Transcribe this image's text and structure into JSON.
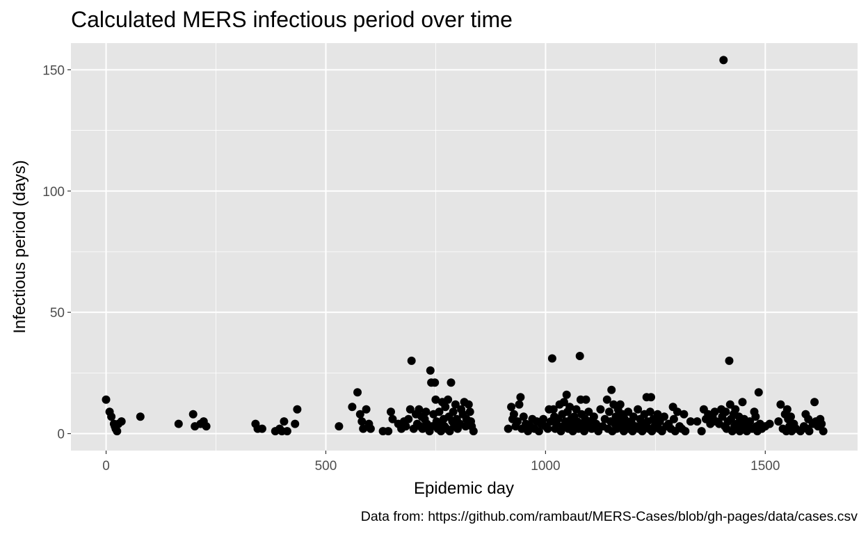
{
  "chart_data": {
    "type": "scatter",
    "title": "Calculated MERS infectious period over time",
    "xlabel": "Epidemic day",
    "ylabel": "Infectious period (days)",
    "caption": "Data from: https://github.com/rambaut/MERS-Cases/blob/gh-pages/data/cases.csv",
    "xlim": [
      -80,
      1710
    ],
    "ylim": [
      -7,
      161
    ],
    "x_ticks": [
      0,
      500,
      1000,
      1500
    ],
    "y_ticks": [
      0,
      50,
      100,
      150
    ],
    "x_tick_labels": [
      "0",
      "500",
      "1000",
      "1500"
    ],
    "y_tick_labels": [
      "0",
      "50",
      "100",
      "150"
    ],
    "grid": true,
    "colors": {
      "panel": "#e5e5e5",
      "grid": "#ffffff",
      "point": "#000000",
      "tick_label": "#4d4d4d"
    },
    "points": [
      [
        0,
        14
      ],
      [
        8,
        9
      ],
      [
        12,
        7
      ],
      [
        18,
        4
      ],
      [
        20,
        3
      ],
      [
        22,
        2
      ],
      [
        25,
        1
      ],
      [
        28,
        4
      ],
      [
        35,
        5
      ],
      [
        78,
        7
      ],
      [
        165,
        4
      ],
      [
        198,
        8
      ],
      [
        202,
        3
      ],
      [
        215,
        4
      ],
      [
        222,
        5
      ],
      [
        228,
        3
      ],
      [
        340,
        4
      ],
      [
        345,
        2
      ],
      [
        355,
        2
      ],
      [
        385,
        1
      ],
      [
        395,
        2
      ],
      [
        400,
        1
      ],
      [
        405,
        5
      ],
      [
        412,
        1
      ],
      [
        430,
        4
      ],
      [
        435,
        10
      ],
      [
        530,
        3
      ],
      [
        560,
        11
      ],
      [
        572,
        17
      ],
      [
        578,
        8
      ],
      [
        582,
        5
      ],
      [
        585,
        2
      ],
      [
        592,
        10
      ],
      [
        598,
        4
      ],
      [
        602,
        2
      ],
      [
        630,
        1
      ],
      [
        642,
        1
      ],
      [
        648,
        9
      ],
      [
        652,
        6
      ],
      [
        665,
        4
      ],
      [
        672,
        2
      ],
      [
        678,
        5
      ],
      [
        682,
        3
      ],
      [
        688,
        6
      ],
      [
        692,
        10
      ],
      [
        695,
        30
      ],
      [
        700,
        2
      ],
      [
        705,
        8
      ],
      [
        708,
        4
      ],
      [
        712,
        10
      ],
      [
        715,
        3
      ],
      [
        718,
        7
      ],
      [
        720,
        2
      ],
      [
        725,
        6
      ],
      [
        728,
        9
      ],
      [
        730,
        4
      ],
      [
        733,
        2
      ],
      [
        736,
        1
      ],
      [
        738,
        26
      ],
      [
        740,
        21
      ],
      [
        742,
        3
      ],
      [
        745,
        8
      ],
      [
        748,
        21
      ],
      [
        750,
        14
      ],
      [
        752,
        5
      ],
      [
        755,
        2
      ],
      [
        758,
        9
      ],
      [
        760,
        4
      ],
      [
        762,
        1
      ],
      [
        765,
        13
      ],
      [
        768,
        6
      ],
      [
        770,
        3
      ],
      [
        772,
        11
      ],
      [
        775,
        2
      ],
      [
        778,
        14
      ],
      [
        780,
        7
      ],
      [
        782,
        1
      ],
      [
        785,
        21
      ],
      [
        788,
        5
      ],
      [
        790,
        9
      ],
      [
        792,
        3
      ],
      [
        795,
        12
      ],
      [
        798,
        6
      ],
      [
        800,
        2
      ],
      [
        805,
        4
      ],
      [
        808,
        10
      ],
      [
        812,
        8
      ],
      [
        815,
        13
      ],
      [
        818,
        3
      ],
      [
        820,
        6
      ],
      [
        825,
        12
      ],
      [
        828,
        9
      ],
      [
        830,
        5
      ],
      [
        832,
        3
      ],
      [
        836,
        1
      ],
      [
        915,
        2
      ],
      [
        922,
        11
      ],
      [
        925,
        6
      ],
      [
        928,
        8
      ],
      [
        932,
        3
      ],
      [
        936,
        5
      ],
      [
        940,
        12
      ],
      [
        943,
        15
      ],
      [
        946,
        2
      ],
      [
        950,
        7
      ],
      [
        955,
        4
      ],
      [
        960,
        1
      ],
      [
        965,
        3
      ],
      [
        970,
        6
      ],
      [
        975,
        2
      ],
      [
        980,
        5
      ],
      [
        985,
        1
      ],
      [
        990,
        4
      ],
      [
        995,
        6
      ],
      [
        1000,
        3
      ],
      [
        1005,
        2
      ],
      [
        1008,
        10
      ],
      [
        1012,
        5
      ],
      [
        1015,
        31
      ],
      [
        1018,
        10
      ],
      [
        1020,
        7
      ],
      [
        1022,
        2
      ],
      [
        1025,
        4
      ],
      [
        1028,
        6
      ],
      [
        1032,
        12
      ],
      [
        1035,
        1
      ],
      [
        1038,
        8
      ],
      [
        1040,
        3
      ],
      [
        1042,
        13
      ],
      [
        1045,
        5
      ],
      [
        1048,
        16
      ],
      [
        1050,
        9
      ],
      [
        1052,
        2
      ],
      [
        1055,
        11
      ],
      [
        1058,
        6
      ],
      [
        1060,
        4
      ],
      [
        1062,
        1
      ],
      [
        1065,
        7
      ],
      [
        1068,
        3
      ],
      [
        1070,
        10
      ],
      [
        1072,
        5
      ],
      [
        1075,
        2
      ],
      [
        1078,
        32
      ],
      [
        1080,
        14
      ],
      [
        1082,
        8
      ],
      [
        1085,
        4
      ],
      [
        1088,
        1
      ],
      [
        1090,
        6
      ],
      [
        1092,
        14
      ],
      [
        1095,
        3
      ],
      [
        1098,
        9
      ],
      [
        1100,
        5
      ],
      [
        1105,
        2
      ],
      [
        1110,
        7
      ],
      [
        1115,
        4
      ],
      [
        1120,
        1
      ],
      [
        1125,
        10
      ],
      [
        1130,
        3
      ],
      [
        1135,
        6
      ],
      [
        1140,
        14
      ],
      [
        1142,
        2
      ],
      [
        1145,
        9
      ],
      [
        1148,
        5
      ],
      [
        1150,
        18
      ],
      [
        1152,
        1
      ],
      [
        1155,
        12
      ],
      [
        1158,
        4
      ],
      [
        1160,
        7
      ],
      [
        1162,
        2
      ],
      [
        1165,
        10
      ],
      [
        1168,
        5
      ],
      [
        1170,
        12
      ],
      [
        1172,
        3
      ],
      [
        1175,
        8
      ],
      [
        1178,
        1
      ],
      [
        1180,
        6
      ],
      [
        1185,
        4
      ],
      [
        1188,
        9
      ],
      [
        1190,
        2
      ],
      [
        1195,
        5
      ],
      [
        1198,
        1
      ],
      [
        1200,
        7
      ],
      [
        1205,
        3
      ],
      [
        1210,
        10
      ],
      [
        1212,
        2
      ],
      [
        1215,
        6
      ],
      [
        1218,
        4
      ],
      [
        1220,
        1
      ],
      [
        1225,
        8
      ],
      [
        1228,
        3
      ],
      [
        1230,
        15
      ],
      [
        1232,
        5
      ],
      [
        1235,
        2
      ],
      [
        1238,
        9
      ],
      [
        1240,
        15
      ],
      [
        1242,
        1
      ],
      [
        1245,
        6
      ],
      [
        1248,
        3
      ],
      [
        1250,
        4
      ],
      [
        1255,
        8
      ],
      [
        1258,
        2
      ],
      [
        1260,
        5
      ],
      [
        1265,
        1
      ],
      [
        1270,
        7
      ],
      [
        1275,
        3
      ],
      [
        1280,
        4
      ],
      [
        1285,
        2
      ],
      [
        1290,
        11
      ],
      [
        1292,
        6
      ],
      [
        1295,
        1
      ],
      [
        1300,
        9
      ],
      [
        1305,
        3
      ],
      [
        1310,
        2
      ],
      [
        1315,
        8
      ],
      [
        1318,
        1
      ],
      [
        1330,
        5
      ],
      [
        1345,
        5
      ],
      [
        1355,
        1
      ],
      [
        1360,
        10
      ],
      [
        1365,
        6
      ],
      [
        1370,
        8
      ],
      [
        1375,
        4
      ],
      [
        1380,
        7
      ],
      [
        1385,
        9
      ],
      [
        1388,
        5
      ],
      [
        1395,
        4
      ],
      [
        1400,
        10
      ],
      [
        1402,
        7
      ],
      [
        1405,
        154
      ],
      [
        1408,
        3
      ],
      [
        1410,
        9
      ],
      [
        1412,
        2
      ],
      [
        1415,
        5
      ],
      [
        1418,
        30
      ],
      [
        1420,
        12
      ],
      [
        1422,
        6
      ],
      [
        1425,
        1
      ],
      [
        1428,
        8
      ],
      [
        1430,
        3
      ],
      [
        1432,
        10
      ],
      [
        1435,
        4
      ],
      [
        1438,
        2
      ],
      [
        1440,
        7
      ],
      [
        1442,
        1
      ],
      [
        1445,
        5
      ],
      [
        1448,
        13
      ],
      [
        1450,
        2
      ],
      [
        1452,
        6
      ],
      [
        1455,
        4
      ],
      [
        1458,
        1
      ],
      [
        1460,
        3
      ],
      [
        1465,
        5
      ],
      [
        1470,
        2
      ],
      [
        1475,
        9
      ],
      [
        1478,
        7
      ],
      [
        1480,
        3
      ],
      [
        1482,
        1
      ],
      [
        1485,
        17
      ],
      [
        1488,
        4
      ],
      [
        1492,
        2
      ],
      [
        1500,
        3
      ],
      [
        1510,
        4
      ],
      [
        1530,
        5
      ],
      [
        1535,
        12
      ],
      [
        1540,
        2
      ],
      [
        1545,
        8
      ],
      [
        1548,
        1
      ],
      [
        1550,
        10
      ],
      [
        1552,
        6
      ],
      [
        1555,
        3
      ],
      [
        1558,
        7
      ],
      [
        1560,
        1
      ],
      [
        1565,
        4
      ],
      [
        1570,
        2
      ],
      [
        1580,
        1
      ],
      [
        1588,
        3
      ],
      [
        1592,
        8
      ],
      [
        1595,
        2
      ],
      [
        1598,
        6
      ],
      [
        1600,
        1
      ],
      [
        1608,
        4
      ],
      [
        1612,
        13
      ],
      [
        1615,
        5
      ],
      [
        1620,
        3
      ],
      [
        1625,
        6
      ],
      [
        1628,
        4
      ],
      [
        1632,
        1
      ]
    ]
  }
}
